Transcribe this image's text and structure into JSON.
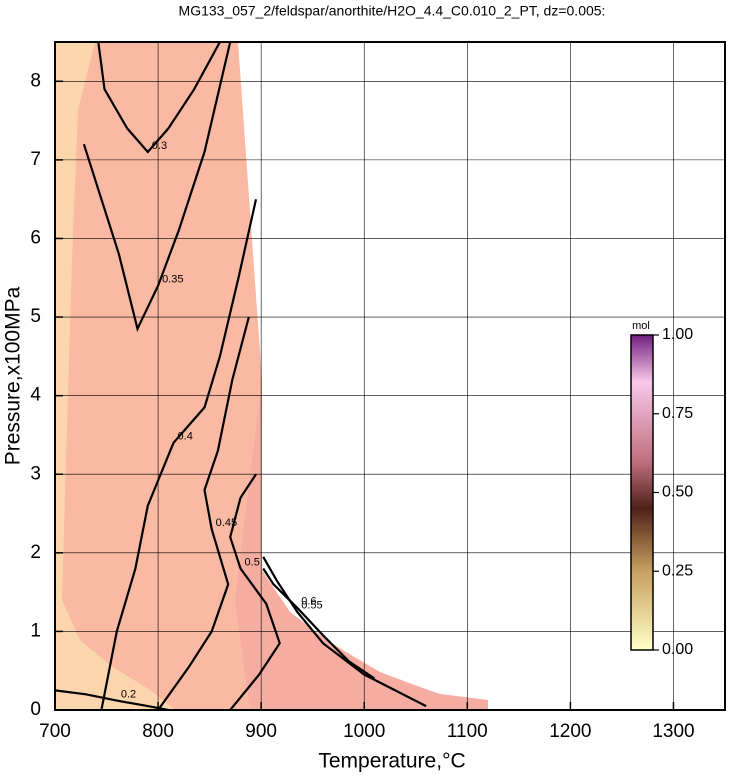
{
  "chart_data": {
    "type": "contour",
    "title": "MG133_057_2/feldspar/anorthite/H2O_4.4_C0.010_2_PT, dz=0.005:",
    "x_label": "Temperature,°C",
    "y_label": "Pressure,x100MPa",
    "xlim": [
      700,
      1350
    ],
    "ylim": [
      0,
      8.5
    ],
    "xticks": [
      700,
      800,
      900,
      1000,
      1100,
      1200,
      1300
    ],
    "yticks": [
      0,
      1,
      2,
      3,
      4,
      5,
      6,
      7,
      8
    ],
    "grid": true,
    "contours": [
      {
        "level": 0.2,
        "x": [
          700,
          730,
          760,
          790,
          810
        ],
        "y": [
          0.25,
          0.2,
          0.12,
          0.05,
          0
        ]
      },
      {
        "level": 0.3,
        "x": [
          742,
          748,
          770,
          790,
          810,
          835,
          860
        ],
        "y": [
          8.5,
          7.9,
          7.4,
          7.1,
          7.4,
          7.9,
          8.5
        ]
      },
      {
        "level": 0.35,
        "x": [
          728,
          745,
          762,
          780,
          800,
          820,
          845,
          870
        ],
        "y": [
          7.2,
          6.5,
          5.8,
          4.85,
          5.4,
          6.1,
          7.1,
          8.5
        ]
      },
      {
        "level": 0.4,
        "x": [
          745,
          760,
          778,
          790,
          815,
          845,
          860,
          878,
          895
        ],
        "y": [
          0,
          1.0,
          1.8,
          2.6,
          3.4,
          3.85,
          4.5,
          5.5,
          6.5
        ]
      },
      {
        "level": 0.45,
        "x": [
          800,
          830,
          852,
          868,
          852,
          845,
          858,
          872,
          888
        ],
        "y": [
          0,
          0.55,
          1.0,
          1.6,
          2.3,
          2.8,
          3.3,
          4.2,
          5.0
        ]
      },
      {
        "level": 0.5,
        "x": [
          870,
          898,
          918,
          905,
          880,
          870,
          880,
          895
        ],
        "y": [
          0,
          0.45,
          0.85,
          1.35,
          1.8,
          2.2,
          2.7,
          3.0
        ]
      },
      {
        "level": 0.55,
        "x": [
          1060,
          1000,
          960,
          935,
          915,
          902
        ],
        "y": [
          0.05,
          0.45,
          0.85,
          1.25,
          1.65,
          1.95
        ]
      },
      {
        "level": 0.6,
        "x": [
          1010,
          985,
          960,
          935,
          912,
          902
        ],
        "y": [
          0.4,
          0.62,
          0.95,
          1.3,
          1.6,
          1.8
        ]
      }
    ],
    "colorbar": {
      "label": "mol",
      "lim": [
        0,
        1
      ],
      "ticks": [
        {
          "value": 0,
          "label": "0.00"
        },
        {
          "value": 0.25,
          "label": "0.25"
        },
        {
          "value": 0.5,
          "label": "0.50"
        },
        {
          "value": 0.75,
          "label": "0.75"
        },
        {
          "value": 1,
          "label": "1.00"
        }
      ]
    }
  }
}
